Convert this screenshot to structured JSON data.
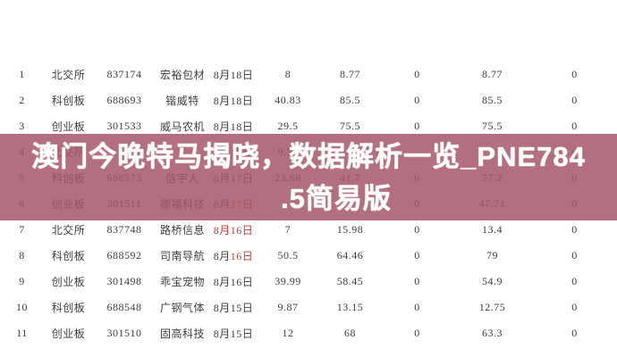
{
  "banner": {
    "line1": "澳门今晚特马揭晓，数据解析一览_PNE784",
    "line2": ".5简易版",
    "full_text": "澳门今晚特马揭晓，数据解析一览_PNE784.5简易版"
  },
  "colors": {
    "banner_bg": "#a4566a",
    "banner_text": "#ffffff",
    "date_red": "#bf3a36",
    "table_text": "#3f3f3f"
  },
  "table": {
    "rows": [
      {
        "seq": "1",
        "board": "北交所",
        "code": "837174",
        "name": "宏裕包材",
        "date_dark": "8月18日",
        "date_red": "",
        "values": [
          "8",
          "8.77",
          "0",
          "8.77",
          "0"
        ]
      },
      {
        "seq": "2",
        "board": "科创板",
        "code": "688693",
        "name": "锴威特",
        "date_dark": "8月18日",
        "date_red": "",
        "values": [
          "40.83",
          "85.5",
          "0",
          "85.5",
          "0"
        ]
      },
      {
        "seq": "3",
        "board": "创业板",
        "code": "301533",
        "name": "威马农机",
        "date_dark": "8月18日",
        "date_red": "",
        "values": [
          "29.5",
          "75.5",
          "0",
          "75.5",
          "0"
        ]
      },
      {
        "seq": "4",
        "board": "北交所",
        "code": "",
        "name": "",
        "date_dark": "8月17日",
        "date_red": "",
        "values": [
          "9.78",
          "0",
          "",
          "",
          "0"
        ]
      },
      {
        "seq": "5",
        "board": "科创板",
        "code": "688573",
        "name": "信宇人",
        "date_dark": "8月17日",
        "date_red": "",
        "values": [
          "23.68",
          "41.7",
          "0",
          "57.2",
          "0"
        ]
      },
      {
        "seq": "6",
        "board": "创业板",
        "code": "301511",
        "name": "德福科技",
        "date_dark": "8月",
        "date_red": "17日",
        "values": [
          "",
          "",
          "0",
          "47.71",
          "0"
        ]
      },
      {
        "seq": "7",
        "board": "北交所",
        "code": "837748",
        "name": "路桥信息",
        "date_dark": "",
        "date_red": "8月16日",
        "values": [
          "7",
          "15.98",
          "0",
          "13.4",
          "0"
        ]
      },
      {
        "seq": "8",
        "board": "科创板",
        "code": "688592",
        "name": "司南导航",
        "date_dark": "8月",
        "date_red": "16日",
        "values": [
          "50.5",
          "64.46",
          "0",
          "79",
          "0"
        ]
      },
      {
        "seq": "9",
        "board": "创业板",
        "code": "301498",
        "name": "乖宝宠物",
        "date_dark": "8月16日",
        "date_red": "",
        "values": [
          "39.99",
          "58.45",
          "0",
          "54.9",
          "0"
        ]
      },
      {
        "seq": "10",
        "board": "科创板",
        "code": "688548",
        "name": "广钢气体",
        "date_dark": "8月15日",
        "date_red": "",
        "values": [
          "9.87",
          "13.15",
          "0",
          "12.75",
          "0"
        ]
      },
      {
        "seq": "11",
        "board": "创业板",
        "code": "301510",
        "name": "固高科技",
        "date_dark": "8月15日",
        "date_red": "",
        "values": [
          "12",
          "68",
          "0",
          "63.3",
          "0"
        ]
      }
    ]
  }
}
